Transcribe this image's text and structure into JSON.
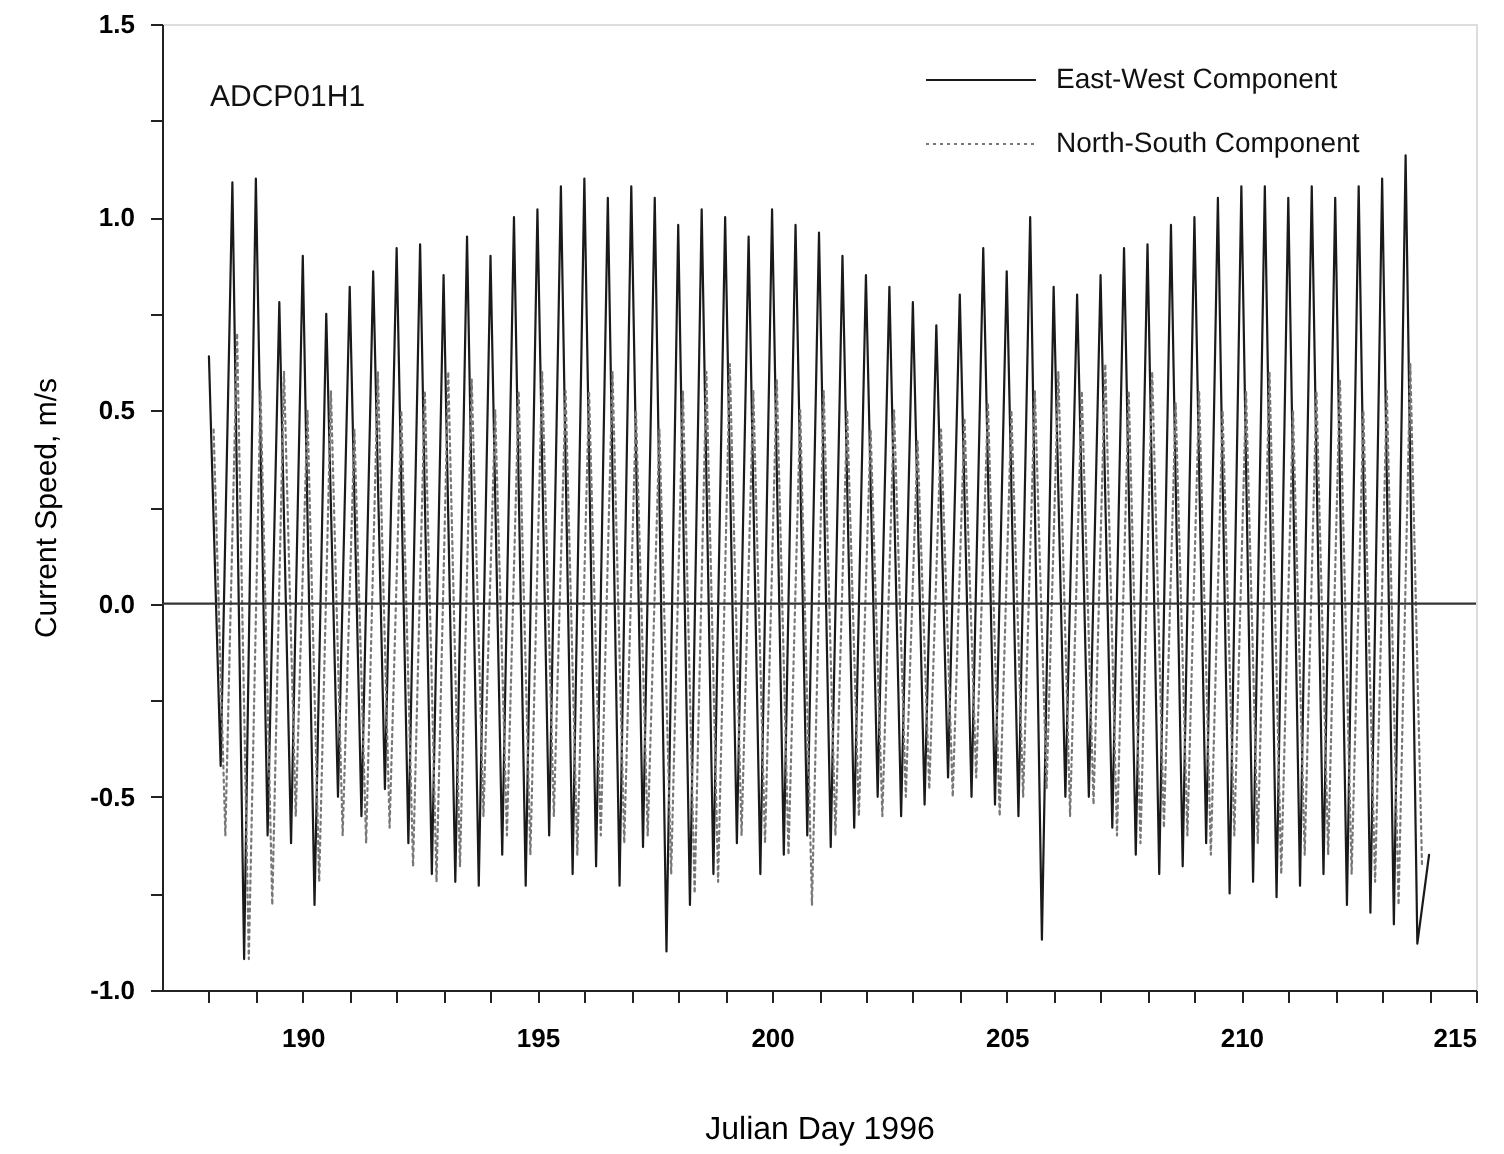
{
  "chart_data": {
    "type": "line",
    "xlabel": "Julian Day 1996",
    "ylabel": "Current Speed, m/s",
    "annotations": [
      "ADCP01H1"
    ],
    "xlim": [
      187,
      215
    ],
    "ylim": [
      -1.0,
      1.5
    ],
    "xticks": [
      {
        "value": 188,
        "label": null
      },
      {
        "value": 189,
        "label": null
      },
      190,
      {
        "value": 191,
        "label": null
      },
      {
        "value": 192,
        "label": null
      },
      {
        "value": 193,
        "label": null
      },
      {
        "value": 194,
        "label": null
      },
      195,
      {
        "value": 196,
        "label": null
      },
      {
        "value": 197,
        "label": null
      },
      {
        "value": 198,
        "label": null
      },
      {
        "value": 199,
        "label": null
      },
      200,
      {
        "value": 201,
        "label": null
      },
      {
        "value": 202,
        "label": null
      },
      {
        "value": 203,
        "label": null
      },
      {
        "value": 204,
        "label": null
      },
      205,
      {
        "value": 206,
        "label": null
      },
      {
        "value": 207,
        "label": null
      },
      {
        "value": 208,
        "label": null
      },
      {
        "value": 209,
        "label": null
      },
      210,
      {
        "value": 211,
        "label": null
      },
      {
        "value": 212,
        "label": null
      },
      {
        "value": 213,
        "label": null
      },
      {
        "value": 214,
        "label": null
      },
      215
    ],
    "yticks": [
      {
        "value": -1.0,
        "label": "-1.0"
      },
      {
        "value": -0.75,
        "label": null
      },
      {
        "value": -0.5,
        "label": "-0.5"
      },
      {
        "value": -0.25,
        "label": null
      },
      {
        "value": 0,
        "label": "0.0"
      },
      {
        "value": 0.25,
        "label": null
      },
      {
        "value": 0.5,
        "label": "0.5"
      },
      {
        "value": 0.75,
        "label": null
      },
      {
        "value": 1.0,
        "label": "1.0"
      },
      {
        "value": 1.25,
        "label": null
      },
      {
        "value": 1.5,
        "label": "1.5"
      }
    ],
    "grid": false,
    "legend": "top right",
    "ref_lines": [
      {
        "axis": "y",
        "value": 0,
        "color": "#333333"
      }
    ],
    "series": [
      {
        "name": "East-West Component",
        "color": "#1a1a1a",
        "line_style": "solid",
        "x": [
          188,
          188.25,
          188.5,
          188.75,
          189,
          189.25,
          189.5,
          189.75,
          190,
          190.25,
          190.5,
          190.75,
          191,
          191.25,
          191.5,
          191.75,
          192,
          192.25,
          192.5,
          192.75,
          193,
          193.25,
          193.5,
          193.75,
          194,
          194.25,
          194.5,
          194.75,
          195,
          195.25,
          195.5,
          195.75,
          196,
          196.25,
          196.5,
          196.75,
          197,
          197.25,
          197.5,
          197.75,
          198,
          198.25,
          198.5,
          198.75,
          199,
          199.25,
          199.5,
          199.75,
          200,
          200.25,
          200.5,
          200.75,
          201,
          201.25,
          201.5,
          201.75,
          202,
          202.25,
          202.5,
          202.75,
          203,
          203.25,
          203.5,
          203.75,
          204,
          204.25,
          204.5,
          204.75,
          205,
          205.25,
          205.5,
          205.75,
          206,
          206.25,
          206.5,
          206.75,
          207,
          207.25,
          207.5,
          207.75,
          208,
          208.25,
          208.5,
          208.75,
          209,
          209.25,
          209.5,
          209.75,
          210,
          210.25,
          210.5,
          210.75,
          211,
          211.25,
          211.5,
          211.75,
          212,
          212.25,
          212.5,
          212.75,
          213,
          213.25,
          213.5,
          213.75,
          214
        ],
        "values": [
          0.64,
          -0.42,
          1.09,
          -0.92,
          1.1,
          -0.6,
          0.78,
          -0.62,
          0.9,
          -0.78,
          0.75,
          -0.5,
          0.82,
          -0.55,
          0.86,
          -0.48,
          0.92,
          -0.62,
          0.93,
          -0.7,
          0.85,
          -0.72,
          0.95,
          -0.73,
          0.9,
          -0.65,
          1.0,
          -0.73,
          1.02,
          -0.6,
          1.08,
          -0.7,
          1.1,
          -0.68,
          1.05,
          -0.73,
          1.08,
          -0.63,
          1.05,
          -0.9,
          0.98,
          -0.78,
          1.02,
          -0.7,
          1.0,
          -0.62,
          0.95,
          -0.7,
          1.02,
          -0.65,
          0.98,
          -0.6,
          0.96,
          -0.63,
          0.9,
          -0.58,
          0.85,
          -0.5,
          0.82,
          -0.55,
          0.78,
          -0.52,
          0.72,
          -0.45,
          0.8,
          -0.5,
          0.92,
          -0.52,
          0.86,
          -0.55,
          1.0,
          -0.87,
          0.82,
          -0.5,
          0.8,
          -0.5,
          0.85,
          -0.58,
          0.92,
          -0.65,
          0.93,
          -0.7,
          0.98,
          -0.68,
          1.0,
          -0.62,
          1.05,
          -0.75,
          1.08,
          -0.72,
          1.08,
          -0.76,
          1.05,
          -0.73,
          1.08,
          -0.7,
          1.05,
          -0.78,
          1.08,
          -0.8,
          1.1,
          -0.83,
          1.16,
          -0.88,
          -0.65
        ]
      },
      {
        "name": "North-South Component",
        "color": "#777777",
        "line_style": "dotted",
        "x": [
          188.1,
          188.35,
          188.6,
          188.85,
          189.1,
          189.35,
          189.6,
          189.85,
          190.1,
          190.35,
          190.6,
          190.85,
          191.1,
          191.35,
          191.6,
          191.85,
          192.1,
          192.35,
          192.6,
          192.85,
          193.1,
          193.35,
          193.6,
          193.85,
          194.1,
          194.35,
          194.6,
          194.85,
          195.1,
          195.35,
          195.6,
          195.85,
          196.1,
          196.35,
          196.6,
          196.85,
          197.1,
          197.35,
          197.6,
          197.85,
          198.1,
          198.35,
          198.6,
          198.85,
          199.1,
          199.35,
          199.6,
          199.85,
          200.1,
          200.35,
          200.6,
          200.85,
          201.1,
          201.35,
          201.6,
          201.85,
          202.1,
          202.35,
          202.6,
          202.85,
          203.1,
          203.35,
          203.6,
          203.85,
          204.1,
          204.35,
          204.6,
          204.85,
          205.1,
          205.35,
          205.6,
          205.85,
          206.1,
          206.35,
          206.6,
          206.85,
          207.1,
          207.35,
          207.6,
          207.85,
          208.1,
          208.35,
          208.6,
          208.85,
          209.1,
          209.35,
          209.6,
          209.85,
          210.1,
          210.35,
          210.6,
          210.85,
          211.1,
          211.35,
          211.6,
          211.85,
          212.1,
          212.35,
          212.6,
          212.85,
          213.1,
          213.35,
          213.6,
          213.85
        ],
        "values": [
          0.45,
          -0.6,
          0.7,
          -0.92,
          0.55,
          -0.78,
          0.6,
          -0.55,
          0.5,
          -0.72,
          0.55,
          -0.6,
          0.45,
          -0.62,
          0.6,
          -0.58,
          0.5,
          -0.68,
          0.55,
          -0.72,
          0.6,
          -0.68,
          0.58,
          -0.55,
          0.5,
          -0.6,
          0.55,
          -0.65,
          0.6,
          -0.55,
          0.55,
          -0.65,
          0.55,
          -0.6,
          0.6,
          -0.62,
          0.5,
          -0.6,
          0.45,
          -0.7,
          0.55,
          -0.75,
          0.6,
          -0.72,
          0.62,
          -0.6,
          0.55,
          -0.62,
          0.58,
          -0.65,
          0.5,
          -0.78,
          0.55,
          -0.6,
          0.5,
          -0.55,
          0.45,
          -0.55,
          0.5,
          -0.5,
          0.42,
          -0.48,
          0.45,
          -0.5,
          0.48,
          -0.45,
          0.52,
          -0.55,
          0.5,
          -0.5,
          0.55,
          -0.48,
          0.6,
          -0.55,
          0.55,
          -0.52,
          0.62,
          -0.6,
          0.55,
          -0.62,
          0.6,
          -0.58,
          0.52,
          -0.6,
          0.55,
          -0.65,
          0.5,
          -0.6,
          0.55,
          -0.62,
          0.6,
          -0.7,
          0.5,
          -0.65,
          0.55,
          -0.65,
          0.58,
          -0.7,
          0.5,
          -0.72,
          0.55,
          -0.78,
          0.62,
          -0.68
        ]
      }
    ]
  }
}
